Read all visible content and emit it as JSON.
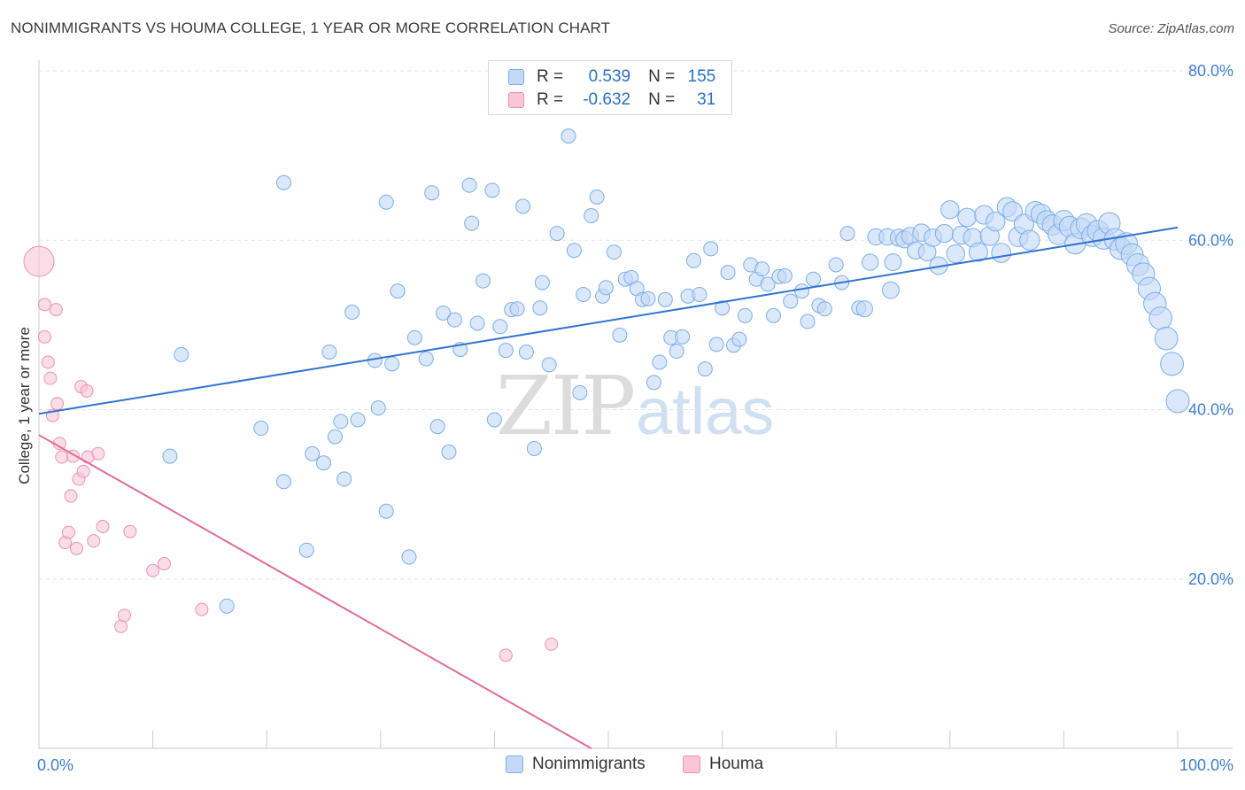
{
  "title": "NONIMMIGRANTS VS HOUMA COLLEGE, 1 YEAR OR MORE CORRELATION CHART",
  "source": "Source: ZipAtlas.com",
  "watermark": {
    "zip": "ZIP",
    "atlas": "atlas"
  },
  "legend_stats": [
    {
      "r_label": "R =",
      "r_value": "0.539",
      "n_label": "N =",
      "n_value": "155"
    },
    {
      "r_label": "R =",
      "r_value": "-0.632",
      "n_label": "N =",
      "n_value": "31"
    }
  ],
  "chart_data": {
    "type": "scatter",
    "title": "NONIMMIGRANTS VS HOUMA COLLEGE, 1 YEAR OR MORE CORRELATION CHART",
    "xlabel": "",
    "ylabel": "College, 1 year or more",
    "xlim": [
      0,
      100
    ],
    "ylim": [
      0,
      80
    ],
    "x_tick_labels": [
      {
        "value": 0,
        "label": "0.0%"
      },
      {
        "value": 100,
        "label": "100.0%"
      }
    ],
    "y_tick_labels": [
      {
        "value": 20,
        "label": "20.0%"
      },
      {
        "value": 40,
        "label": "40.0%"
      },
      {
        "value": 60,
        "label": "60.0%"
      },
      {
        "value": 80,
        "label": "80.0%"
      }
    ],
    "grid": true,
    "legend_position": "bottom-center",
    "series": [
      {
        "name": "Nonimmigrants",
        "color": "#7aaee8",
        "fill": "#c3d9f6",
        "trend": {
          "x": [
            0,
            100
          ],
          "y": [
            39.5,
            61.5
          ]
        },
        "points": [
          {
            "x": 12.5,
            "y": 46.5
          },
          {
            "x": 11.5,
            "y": 34.5
          },
          {
            "x": 16.5,
            "y": 16.8
          },
          {
            "x": 19.5,
            "y": 37.8
          },
          {
            "x": 21.5,
            "y": 66.8
          },
          {
            "x": 21.5,
            "y": 31.5
          },
          {
            "x": 23.5,
            "y": 23.4
          },
          {
            "x": 24.0,
            "y": 34.8
          },
          {
            "x": 25.0,
            "y": 33.7
          },
          {
            "x": 25.5,
            "y": 46.8
          },
          {
            "x": 26.0,
            "y": 36.8
          },
          {
            "x": 26.5,
            "y": 38.6
          },
          {
            "x": 26.8,
            "y": 31.8
          },
          {
            "x": 27.5,
            "y": 51.5
          },
          {
            "x": 28.0,
            "y": 38.8
          },
          {
            "x": 29.5,
            "y": 45.8
          },
          {
            "x": 29.8,
            "y": 40.2
          },
          {
            "x": 30.5,
            "y": 64.5
          },
          {
            "x": 30.5,
            "y": 28.0
          },
          {
            "x": 31.0,
            "y": 45.4
          },
          {
            "x": 31.5,
            "y": 54.0
          },
          {
            "x": 32.5,
            "y": 22.6
          },
          {
            "x": 33.0,
            "y": 48.5
          },
          {
            "x": 34.0,
            "y": 46.0
          },
          {
            "x": 34.5,
            "y": 65.6
          },
          {
            "x": 35.0,
            "y": 38.0
          },
          {
            "x": 35.5,
            "y": 51.4
          },
          {
            "x": 36.0,
            "y": 35.0
          },
          {
            "x": 36.5,
            "y": 50.6
          },
          {
            "x": 37.0,
            "y": 47.1
          },
          {
            "x": 37.8,
            "y": 66.5
          },
          {
            "x": 38.0,
            "y": 62.0
          },
          {
            "x": 38.5,
            "y": 50.2
          },
          {
            "x": 39.0,
            "y": 55.2
          },
          {
            "x": 39.8,
            "y": 65.9
          },
          {
            "x": 40.0,
            "y": 38.8
          },
          {
            "x": 40.5,
            "y": 49.8
          },
          {
            "x": 41.0,
            "y": 47.0
          },
          {
            "x": 41.5,
            "y": 51.8
          },
          {
            "x": 42.0,
            "y": 51.9
          },
          {
            "x": 42.5,
            "y": 64.0
          },
          {
            "x": 42.8,
            "y": 46.8
          },
          {
            "x": 43.5,
            "y": 35.4
          },
          {
            "x": 44.0,
            "y": 52.0
          },
          {
            "x": 44.2,
            "y": 55.0
          },
          {
            "x": 44.8,
            "y": 45.3
          },
          {
            "x": 45.5,
            "y": 60.8
          },
          {
            "x": 46.5,
            "y": 72.3
          },
          {
            "x": 47.0,
            "y": 58.8
          },
          {
            "x": 47.5,
            "y": 42.0
          },
          {
            "x": 47.8,
            "y": 53.6
          },
          {
            "x": 48.5,
            "y": 62.9
          },
          {
            "x": 49.0,
            "y": 65.1
          },
          {
            "x": 49.5,
            "y": 53.4
          },
          {
            "x": 49.8,
            "y": 54.4
          },
          {
            "x": 50.5,
            "y": 58.6
          },
          {
            "x": 51.0,
            "y": 48.8
          },
          {
            "x": 51.5,
            "y": 55.4
          },
          {
            "x": 52.0,
            "y": 55.6
          },
          {
            "x": 52.5,
            "y": 54.3
          },
          {
            "x": 53.0,
            "y": 53.0
          },
          {
            "x": 53.5,
            "y": 53.1
          },
          {
            "x": 54.0,
            "y": 43.2
          },
          {
            "x": 54.5,
            "y": 45.6
          },
          {
            "x": 55.0,
            "y": 53.0
          },
          {
            "x": 55.5,
            "y": 48.5
          },
          {
            "x": 56.0,
            "y": 46.9
          },
          {
            "x": 56.5,
            "y": 48.6
          },
          {
            "x": 57.0,
            "y": 53.4
          },
          {
            "x": 57.5,
            "y": 57.6
          },
          {
            "x": 58.0,
            "y": 53.6
          },
          {
            "x": 58.5,
            "y": 44.8
          },
          {
            "x": 59.0,
            "y": 59.0
          },
          {
            "x": 59.5,
            "y": 47.7
          },
          {
            "x": 60.0,
            "y": 52.0
          },
          {
            "x": 60.5,
            "y": 56.2
          },
          {
            "x": 61.0,
            "y": 47.6
          },
          {
            "x": 61.5,
            "y": 48.3
          },
          {
            "x": 62.0,
            "y": 51.1
          },
          {
            "x": 62.5,
            "y": 57.1
          },
          {
            "x": 63.0,
            "y": 55.4
          },
          {
            "x": 63.5,
            "y": 56.6
          },
          {
            "x": 64.0,
            "y": 54.8
          },
          {
            "x": 64.5,
            "y": 51.1
          },
          {
            "x": 65.0,
            "y": 55.7
          },
          {
            "x": 65.5,
            "y": 55.8
          },
          {
            "x": 66.0,
            "y": 52.8
          },
          {
            "x": 67.0,
            "y": 54.0
          },
          {
            "x": 67.5,
            "y": 50.4
          },
          {
            "x": 68.0,
            "y": 55.4
          },
          {
            "x": 68.5,
            "y": 52.3
          },
          {
            "x": 69.0,
            "y": 51.9
          },
          {
            "x": 70.0,
            "y": 57.1
          },
          {
            "x": 70.5,
            "y": 55.0
          },
          {
            "x": 71.0,
            "y": 60.8
          },
          {
            "x": 72.0,
            "y": 52.0
          },
          {
            "x": 72.5,
            "y": 51.9
          },
          {
            "x": 73.0,
            "y": 57.4
          },
          {
            "x": 73.5,
            "y": 60.4
          },
          {
            "x": 74.5,
            "y": 60.4
          },
          {
            "x": 74.8,
            "y": 54.1
          },
          {
            "x": 75.0,
            "y": 57.4
          },
          {
            "x": 75.5,
            "y": 60.3
          },
          {
            "x": 76.0,
            "y": 60.1
          },
          {
            "x": 76.5,
            "y": 60.5
          },
          {
            "x": 77.0,
            "y": 58.8
          },
          {
            "x": 77.5,
            "y": 60.9
          },
          {
            "x": 78.0,
            "y": 58.6
          },
          {
            "x": 78.5,
            "y": 60.3
          },
          {
            "x": 79.0,
            "y": 57.0
          },
          {
            "x": 79.5,
            "y": 60.8
          },
          {
            "x": 80.0,
            "y": 63.6
          },
          {
            "x": 80.5,
            "y": 58.4
          },
          {
            "x": 81.0,
            "y": 60.6
          },
          {
            "x": 81.5,
            "y": 62.7
          },
          {
            "x": 82.0,
            "y": 60.3
          },
          {
            "x": 82.5,
            "y": 58.6
          },
          {
            "x": 83.0,
            "y": 63.0
          },
          {
            "x": 83.5,
            "y": 60.5
          },
          {
            "x": 84.0,
            "y": 62.2
          },
          {
            "x": 84.5,
            "y": 58.5
          },
          {
            "x": 85.0,
            "y": 63.9
          },
          {
            "x": 85.5,
            "y": 63.4
          },
          {
            "x": 86.0,
            "y": 60.4
          },
          {
            "x": 86.5,
            "y": 61.9
          },
          {
            "x": 87.0,
            "y": 60.0
          },
          {
            "x": 87.5,
            "y": 63.4
          },
          {
            "x": 88.0,
            "y": 63.1
          },
          {
            "x": 88.5,
            "y": 62.3
          },
          {
            "x": 89.0,
            "y": 61.8
          },
          {
            "x": 89.5,
            "y": 60.7
          },
          {
            "x": 90.0,
            "y": 62.3
          },
          {
            "x": 90.5,
            "y": 61.6
          },
          {
            "x": 91.0,
            "y": 59.6
          },
          {
            "x": 91.5,
            "y": 61.4
          },
          {
            "x": 92.0,
            "y": 61.9
          },
          {
            "x": 92.5,
            "y": 60.5
          },
          {
            "x": 93.0,
            "y": 61.1
          },
          {
            "x": 93.5,
            "y": 60.2
          },
          {
            "x": 94.0,
            "y": 62.0
          },
          {
            "x": 94.5,
            "y": 60.1
          },
          {
            "x": 95.0,
            "y": 59.0
          },
          {
            "x": 95.5,
            "y": 59.6
          },
          {
            "x": 96.0,
            "y": 58.3
          },
          {
            "x": 96.5,
            "y": 57.1
          },
          {
            "x": 97.0,
            "y": 56.0
          },
          {
            "x": 97.5,
            "y": 54.3
          },
          {
            "x": 98.0,
            "y": 52.5
          },
          {
            "x": 98.5,
            "y": 50.8
          },
          {
            "x": 99.0,
            "y": 48.4
          },
          {
            "x": 99.5,
            "y": 45.4
          },
          {
            "x": 100.0,
            "y": 41.0
          }
        ]
      },
      {
        "name": "Houma",
        "color": "#ee92b2",
        "fill": "#f9c6d7",
        "trend": {
          "x": [
            0,
            48.5
          ],
          "y": [
            37,
            0
          ]
        },
        "points": [
          {
            "x": 0.0,
            "y": 57.5
          },
          {
            "x": 0.5,
            "y": 52.4
          },
          {
            "x": 0.5,
            "y": 48.6
          },
          {
            "x": 0.8,
            "y": 45.6
          },
          {
            "x": 1.0,
            "y": 43.7
          },
          {
            "x": 1.2,
            "y": 39.3
          },
          {
            "x": 1.5,
            "y": 51.8
          },
          {
            "x": 1.6,
            "y": 40.7
          },
          {
            "x": 1.8,
            "y": 36.0
          },
          {
            "x": 2.0,
            "y": 34.4
          },
          {
            "x": 2.3,
            "y": 24.3
          },
          {
            "x": 2.6,
            "y": 25.5
          },
          {
            "x": 2.8,
            "y": 29.8
          },
          {
            "x": 3.0,
            "y": 34.5
          },
          {
            "x": 3.3,
            "y": 23.6
          },
          {
            "x": 3.5,
            "y": 31.8
          },
          {
            "x": 3.7,
            "y": 42.7
          },
          {
            "x": 3.9,
            "y": 32.7
          },
          {
            "x": 4.2,
            "y": 42.2
          },
          {
            "x": 4.3,
            "y": 34.4
          },
          {
            "x": 4.8,
            "y": 24.5
          },
          {
            "x": 5.2,
            "y": 34.8
          },
          {
            "x": 5.6,
            "y": 26.2
          },
          {
            "x": 7.2,
            "y": 14.4
          },
          {
            "x": 7.5,
            "y": 15.7
          },
          {
            "x": 8.0,
            "y": 25.6
          },
          {
            "x": 10.0,
            "y": 21.0
          },
          {
            "x": 11.0,
            "y": 21.8
          },
          {
            "x": 14.3,
            "y": 16.4
          },
          {
            "x": 41.0,
            "y": 11.0
          },
          {
            "x": 45.0,
            "y": 12.3
          }
        ]
      }
    ]
  }
}
